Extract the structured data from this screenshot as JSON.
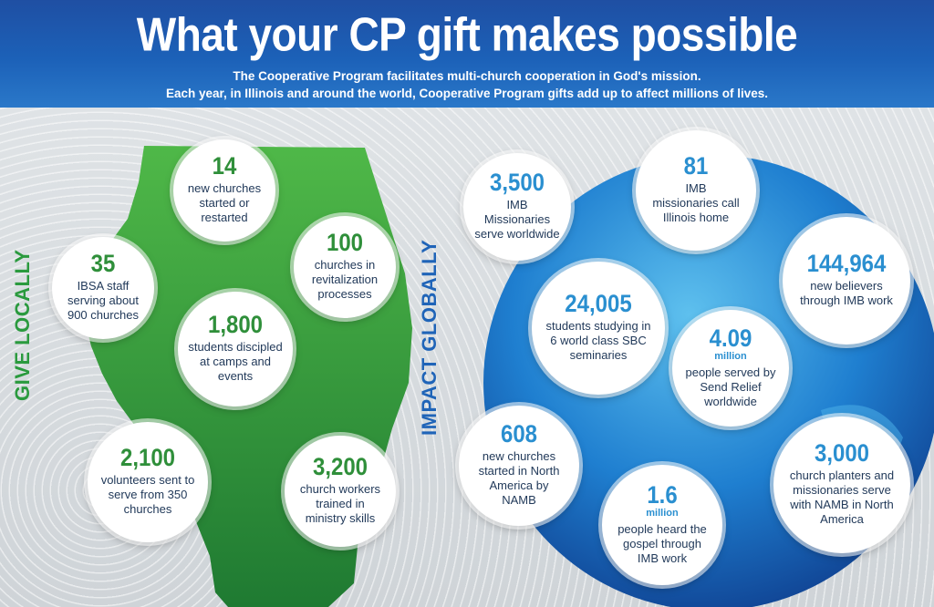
{
  "header": {
    "title": "What your CP gift makes possible",
    "subtitle_line1": "The Cooperative Program facilitates multi-church cooperation in God's mission.",
    "subtitle_line2": "Each year, in Illinois and around the world, Cooperative Program gifts add up to affect millions of lives."
  },
  "labels": {
    "give_locally": "GIVE LOCALLY",
    "impact_globally": "IMPACT GLOBALLY"
  },
  "colors": {
    "header_blue": "#1f4fa3",
    "green": "#2f8f3a",
    "blue": "#2a8fd0"
  },
  "local_stats": [
    {
      "value": "14",
      "desc": "new churches started or restarted"
    },
    {
      "value": "35",
      "desc": "IBSA staff serving about 900 churches"
    },
    {
      "value": "100",
      "desc": "churches in revitalization processes"
    },
    {
      "value": "1,800",
      "desc": "students discipled at camps and events"
    },
    {
      "value": "2,100",
      "desc": "volunteers sent to serve from 350 churches"
    },
    {
      "value": "3,200",
      "desc": "church workers trained in ministry skills"
    }
  ],
  "global_stats": [
    {
      "value": "3,500",
      "unit": "",
      "desc": "IMB Missionaries serve worldwide"
    },
    {
      "value": "81",
      "unit": "",
      "desc": "IMB missionaries call Illinois home"
    },
    {
      "value": "144,964",
      "unit": "",
      "desc": "new believers through IMB work"
    },
    {
      "value": "24,005",
      "unit": "",
      "desc": "students studying in 6 world class SBC seminaries"
    },
    {
      "value": "4.09",
      "unit": "million",
      "desc": "people served by Send Relief worldwide"
    },
    {
      "value": "608",
      "unit": "",
      "desc": "new churches started in North America by NAMB"
    },
    {
      "value": "1.6",
      "unit": "million",
      "desc": "people heard the gospel through IMB work"
    },
    {
      "value": "3,000",
      "unit": "",
      "desc": "church planters and missionaries serve with NAMB in North America"
    }
  ]
}
